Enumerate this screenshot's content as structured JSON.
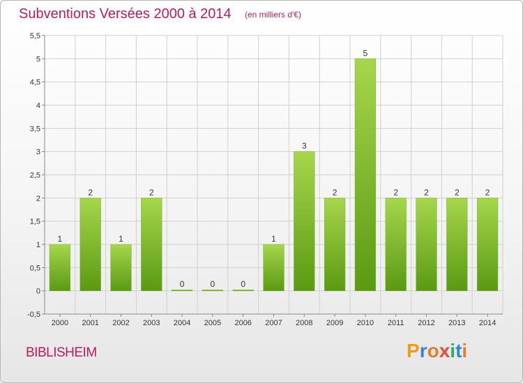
{
  "header": {
    "title": "Subventions Versées 2000 à 2014",
    "subtitle": "(en milliers d'€)"
  },
  "footer": {
    "commune": "BIBLISHEIM",
    "brand_letters": [
      "P",
      "r",
      "o",
      "x",
      "i",
      "t",
      "i"
    ],
    "brand_colors": [
      "#f39c12",
      "#2e86de",
      "#e67e22",
      "#e74c3c",
      "#27ae60",
      "#2e86de",
      "#e67e22"
    ]
  },
  "colors": {
    "bar_light": "#a6d64c",
    "bar_dark": "#5a9a12",
    "grid": "#d0d0d0",
    "axis": "#888888",
    "text": "#333333",
    "accent": "#c2185b"
  },
  "chart_data": {
    "type": "bar",
    "categories": [
      "2000",
      "2001",
      "2002",
      "2003",
      "2004",
      "2005",
      "2006",
      "2007",
      "2008",
      "2009",
      "2010",
      "2011",
      "2012",
      "2013",
      "2014"
    ],
    "values": [
      1,
      2,
      1,
      2,
      0,
      0,
      0,
      1,
      3,
      2,
      5,
      2,
      2,
      2,
      2
    ],
    "value_labels": [
      "1",
      "2",
      "1",
      "2",
      "0",
      "0",
      "0",
      "1",
      "3",
      "2",
      "5",
      "2",
      "2",
      "2",
      "2"
    ],
    "yticks": [
      -0.5,
      0,
      0.5,
      1,
      1.5,
      2,
      2.5,
      3,
      3.5,
      4,
      4.5,
      5,
      5.5
    ],
    "ytick_labels": [
      "-0,5",
      "0",
      "0,5",
      "1",
      "1,5",
      "2",
      "2,5",
      "3",
      "3,5",
      "4",
      "4,5",
      "5",
      "5,5"
    ],
    "ylim": [
      -0.5,
      5.5
    ],
    "title": "Subventions Versées 2000 à 2014",
    "xlabel": "",
    "ylabel": "",
    "grid": true,
    "legend": "none"
  }
}
